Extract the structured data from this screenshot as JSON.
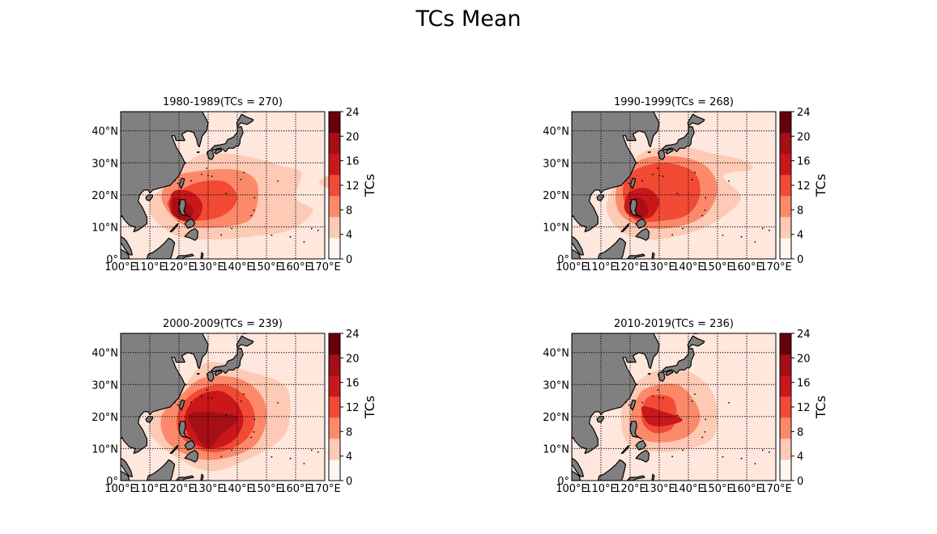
{
  "title": "TCs Mean",
  "colors": {
    "land": "#808080",
    "ocean": "#fee7dc",
    "levels": [
      "#fff5f0",
      "#fdcab5",
      "#fc8a6a",
      "#f24a35",
      "#ca171c",
      "#a50f15",
      "#67000d"
    ]
  },
  "colorbar": {
    "label": "TCs",
    "ticks": [
      "0",
      "4",
      "8",
      "12",
      "16",
      "20",
      "24"
    ]
  },
  "axes": {
    "lon_ticks": [
      "100°E",
      "110°E",
      "120°E",
      "130°E",
      "140°E",
      "150°E",
      "160°E",
      "170°E"
    ],
    "lat_ticks": [
      "0°",
      "10°N",
      "20°N",
      "30°N",
      "40°N"
    ]
  },
  "panels": [
    {
      "title": "1980-1989(TCs = 270)",
      "blobs": [
        {
          "level": 1,
          "pts": [
            [
              126,
              32
            ],
            [
              136,
              33
            ],
            [
              148,
              31
            ],
            [
              155,
              29
            ],
            [
              162,
              27
            ],
            [
              160,
              19
            ],
            [
              166,
              15
            ],
            [
              158,
              9
            ],
            [
              145,
              7
            ],
            [
              132,
              6
            ],
            [
              120,
              7
            ],
            [
              112,
              12
            ],
            [
              110,
              17
            ],
            [
              116,
              24
            ]
          ]
        },
        {
          "level": 1,
          "pts": [
            [
              168,
              24
            ],
            [
              172,
              26
            ],
            [
              172,
              22
            ]
          ]
        },
        {
          "level": 2,
          "pts": [
            [
              123,
              27
            ],
            [
              138,
              28
            ],
            [
              146,
              25
            ],
            [
              147,
              18
            ],
            [
              144,
              12
            ],
            [
              135,
              10
            ],
            [
              124,
              10
            ],
            [
              118,
              13
            ],
            [
              114,
              19
            ],
            [
              117,
              25
            ]
          ]
        },
        {
          "level": 3,
          "pts": [
            [
              120,
              21
            ],
            [
              127,
              24
            ],
            [
              136,
              24
            ],
            [
              140,
              19
            ],
            [
              136,
              14
            ],
            [
              128,
              12
            ],
            [
              121,
              13
            ],
            [
              116,
              17
            ]
          ]
        },
        {
          "level": 4,
          "pts": [
            [
              118,
              21
            ],
            [
              124,
              21
            ],
            [
              128,
              17
            ],
            [
              126,
              12
            ],
            [
              121,
              12
            ],
            [
              117,
              15
            ]
          ]
        },
        {
          "level": 5,
          "pts": [
            [
              118,
              19
            ],
            [
              122,
              18
            ],
            [
              125,
              15
            ],
            [
              122,
              12
            ],
            [
              118,
              14
            ]
          ]
        }
      ]
    },
    {
      "title": "1990-1999(TCs = 268)",
      "blobs": [
        {
          "level": 1,
          "pts": [
            [
              126,
              34
            ],
            [
              138,
              35
            ],
            [
              148,
              33
            ],
            [
              158,
              31
            ],
            [
              162,
              28
            ],
            [
              152,
              26
            ],
            [
              158,
              19
            ],
            [
              150,
              12
            ],
            [
              140,
              8
            ],
            [
              128,
              6
            ],
            [
              118,
              8
            ],
            [
              112,
              15
            ],
            [
              114,
              22
            ],
            [
              118,
              28
            ]
          ]
        },
        {
          "level": 2,
          "pts": [
            [
              124,
              31
            ],
            [
              136,
              32
            ],
            [
              146,
              29
            ],
            [
              150,
              22
            ],
            [
              146,
              14
            ],
            [
              136,
              10
            ],
            [
              124,
              10
            ],
            [
              116,
              15
            ],
            [
              116,
              24
            ]
          ]
        },
        {
          "level": 3,
          "pts": [
            [
              122,
              28
            ],
            [
              132,
              30
            ],
            [
              142,
              27
            ],
            [
              144,
              20
            ],
            [
              140,
              14
            ],
            [
              132,
              12
            ],
            [
              122,
              12
            ],
            [
              118,
              18
            ],
            [
              118,
              24
            ]
          ]
        },
        {
          "level": 4,
          "pts": [
            [
              120,
              21
            ],
            [
              126,
              22
            ],
            [
              130,
              18
            ],
            [
              127,
              13
            ],
            [
              121,
              13
            ],
            [
              118,
              16
            ]
          ]
        },
        {
          "level": 5,
          "pts": [
            [
              121,
              19
            ],
            [
              125,
              18
            ],
            [
              126,
              14
            ],
            [
              122,
              13
            ]
          ]
        }
      ]
    },
    {
      "title": "2000-2009(TCs = 239)",
      "blobs": [
        {
          "level": 1,
          "pts": [
            [
              130,
              37
            ],
            [
              144,
              34
            ],
            [
              154,
              31
            ],
            [
              158,
              26
            ],
            [
              156,
              14
            ],
            [
              142,
              6
            ],
            [
              130,
              3
            ],
            [
              118,
              8
            ],
            [
              110,
              15
            ],
            [
              112,
              22
            ],
            [
              122,
              30
            ]
          ]
        },
        {
          "level": 2,
          "pts": [
            [
              128,
              32
            ],
            [
              140,
              32
            ],
            [
              148,
              27
            ],
            [
              150,
              19
            ],
            [
              146,
              11
            ],
            [
              136,
              7
            ],
            [
              126,
              7
            ],
            [
              116,
              12
            ],
            [
              114,
              20
            ],
            [
              120,
              26
            ]
          ]
        },
        {
          "level": 3,
          "pts": [
            [
              126,
              28
            ],
            [
              136,
              30
            ],
            [
              144,
              25
            ],
            [
              146,
              18
            ],
            [
              142,
              12
            ],
            [
              134,
              9
            ],
            [
              126,
              10
            ],
            [
              120,
              15
            ],
            [
              120,
              22
            ]
          ]
        },
        {
          "level": 4,
          "pts": [
            [
              126,
              26
            ],
            [
              134,
              28
            ],
            [
              140,
              24
            ],
            [
              142,
              18
            ],
            [
              138,
              12
            ],
            [
              130,
              10
            ],
            [
              124,
              13
            ],
            [
              122,
              20
            ]
          ]
        },
        {
          "level": 5,
          "pts": [
            [
              124,
              21
            ],
            [
              140,
              20
            ],
            [
              134,
              14
            ],
            [
              130,
              10
            ],
            [
              126,
              14
            ]
          ]
        }
      ]
    },
    {
      "title": "2010-2019(TCs = 236)",
      "blobs": [
        {
          "level": 1,
          "pts": [
            [
              128,
              34
            ],
            [
              140,
              34
            ],
            [
              148,
              28
            ],
            [
              150,
              20
            ],
            [
              148,
              13
            ],
            [
              140,
              10
            ],
            [
              130,
              9
            ],
            [
              120,
              11
            ],
            [
              117,
              18
            ],
            [
              119,
              27
            ]
          ]
        },
        {
          "level": 2,
          "pts": [
            [
              126,
              29
            ],
            [
              136,
              30
            ],
            [
              142,
              25
            ],
            [
              144,
              19
            ],
            [
              140,
              14
            ],
            [
              132,
              12
            ],
            [
              124,
              13
            ],
            [
              120,
              18
            ],
            [
              122,
              25
            ]
          ]
        },
        {
          "level": 3,
          "pts": [
            [
              126,
              26
            ],
            [
              134,
              26
            ],
            [
              136,
              21
            ],
            [
              134,
              16
            ],
            [
              128,
              15
            ],
            [
              124,
              19
            ]
          ]
        },
        {
          "level": 4,
          "pts": [
            [
              124,
              23
            ],
            [
              130,
              22
            ],
            [
              138,
              19
            ],
            [
              131,
              17
            ],
            [
              126,
              18
            ]
          ]
        }
      ]
    }
  ]
}
